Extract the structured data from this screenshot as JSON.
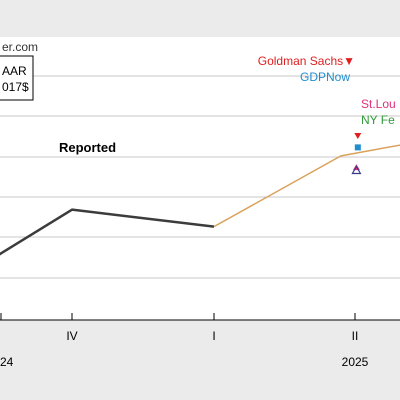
{
  "chart_data": {
    "type": "line",
    "source_fragment": "er.com",
    "box_line_1": "AAR",
    "box_line_2": "017$",
    "x_ticks": [
      "",
      "IV",
      "I",
      "II"
    ],
    "year_labels": [
      "24",
      "2025"
    ],
    "y_range": [
      0,
      100
    ],
    "grid": true,
    "series": [
      {
        "name": "Reported",
        "color": "#3c3c3c",
        "points": [
          {
            "x": -0.1,
            "y": 22
          },
          {
            "x": 1,
            "y": 39
          },
          {
            "x": 2,
            "y": 33
          }
        ]
      },
      {
        "name": "",
        "color": "#d9a15a",
        "points": [
          {
            "x": 2,
            "y": 33
          },
          {
            "x": 2.9,
            "y": 58
          },
          {
            "x": 3.45,
            "y": 63
          }
        ]
      }
    ],
    "markers": [
      {
        "label": "Goldman Sachs",
        "shape": "triangle-down",
        "color": "#e02020",
        "x": 3.02,
        "y": 65
      },
      {
        "label": "GDPNow",
        "shape": "square",
        "color": "#1f8ecf",
        "x": 3.02,
        "y": 61
      },
      {
        "label": "St.Lou",
        "shape": "triangle-up",
        "color": "#e0307a",
        "x": 3.01,
        "y": 54
      },
      {
        "label": "NY Fe",
        "shape": "triangle-up-open",
        "color": "#2f9a3a",
        "x": 3.01,
        "y": 53
      }
    ]
  }
}
